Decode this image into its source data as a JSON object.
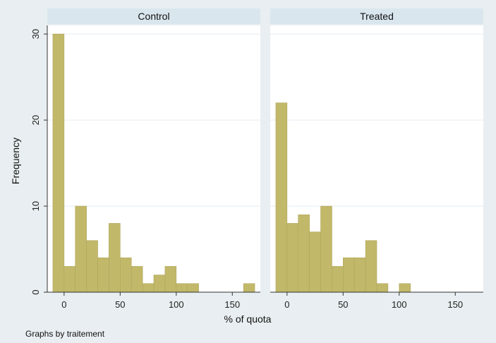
{
  "chart_data": {
    "type": "bar",
    "subtype": "histogram",
    "xlabel": "% of quota",
    "ylabel": "Frequency",
    "note": "Graphs by traitement",
    "xlim": [
      -15,
      175
    ],
    "ylim": [
      0,
      31
    ],
    "x_ticks": [
      0,
      50,
      100,
      150
    ],
    "y_ticks": [
      0,
      10,
      20,
      30
    ],
    "bin_width": 10,
    "bar_color": "#c2b86a",
    "bar_edge_color": "#b0a65a",
    "panel_bg": "#ffffff",
    "strip_bg": "#d9e6ee",
    "outer_bg": "#e8eef1",
    "grid": true,
    "panels": [
      {
        "name": "Control",
        "bins": [
          {
            "x": -5,
            "value": 30
          },
          {
            "x": 5,
            "value": 3
          },
          {
            "x": 15,
            "value": 10
          },
          {
            "x": 25,
            "value": 6
          },
          {
            "x": 35,
            "value": 4
          },
          {
            "x": 45,
            "value": 8
          },
          {
            "x": 55,
            "value": 4
          },
          {
            "x": 65,
            "value": 3
          },
          {
            "x": 75,
            "value": 1
          },
          {
            "x": 85,
            "value": 2
          },
          {
            "x": 95,
            "value": 3
          },
          {
            "x": 105,
            "value": 1
          },
          {
            "x": 115,
            "value": 1
          },
          {
            "x": 165,
            "value": 1
          }
        ]
      },
      {
        "name": "Treated",
        "bins": [
          {
            "x": -5,
            "value": 22
          },
          {
            "x": 5,
            "value": 8
          },
          {
            "x": 15,
            "value": 9
          },
          {
            "x": 25,
            "value": 7
          },
          {
            "x": 35,
            "value": 10
          },
          {
            "x": 45,
            "value": 3
          },
          {
            "x": 55,
            "value": 4
          },
          {
            "x": 65,
            "value": 4
          },
          {
            "x": 75,
            "value": 6
          },
          {
            "x": 85,
            "value": 1
          },
          {
            "x": 105,
            "value": 1
          }
        ]
      }
    ]
  }
}
